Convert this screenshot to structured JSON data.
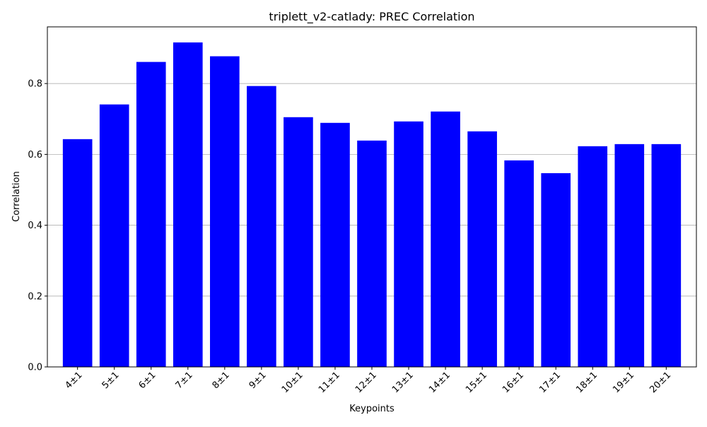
{
  "colors": {
    "bar": "#0000ff",
    "grid": "#b0b0b0",
    "axis": "#000000",
    "background": "#ffffff"
  },
  "chart_data": {
    "type": "bar",
    "title": "triplett_v2-catlady: PREC Correlation",
    "xlabel": "Keypoints",
    "ylabel": "Correlation",
    "categories": [
      "4±1",
      "5±1",
      "6±1",
      "7±1",
      "8±1",
      "9±1",
      "10±1",
      "11±1",
      "12±1",
      "13±1",
      "14±1",
      "15±1",
      "16±1",
      "17±1",
      "18±1",
      "19±1",
      "20±1"
    ],
    "values": [
      0.643,
      0.741,
      0.861,
      0.916,
      0.877,
      0.793,
      0.705,
      0.689,
      0.639,
      0.693,
      0.721,
      0.665,
      0.583,
      0.547,
      0.623,
      0.629,
      0.629
    ],
    "yticks": [
      "0.0",
      "0.2",
      "0.4",
      "0.6",
      "0.8"
    ],
    "ylim": [
      0,
      0.96
    ],
    "grid": "y-axis major",
    "legend": "none"
  }
}
